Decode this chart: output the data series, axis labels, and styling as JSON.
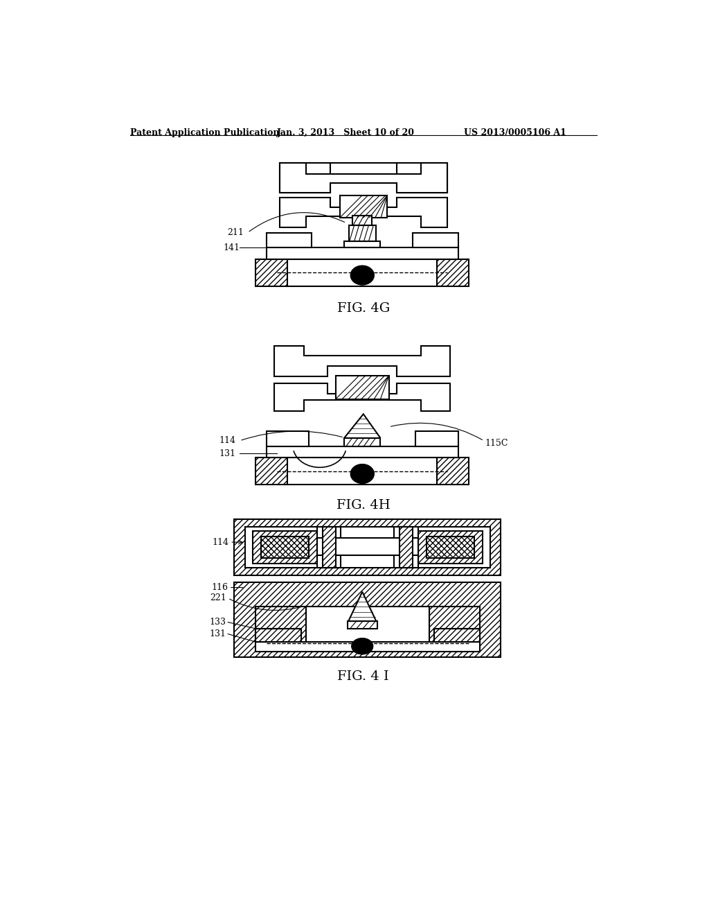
{
  "bg_color": "#ffffff",
  "line_color": "#000000",
  "header_left": "Patent Application Publication",
  "header_mid": "Jan. 3, 2013   Sheet 10 of 20",
  "header_right": "US 2013/0005106 A1",
  "fig4g_label": "FIG. 4G",
  "fig4h_label": "FIG. 4H",
  "fig4i_label": "FIG. 4 I"
}
